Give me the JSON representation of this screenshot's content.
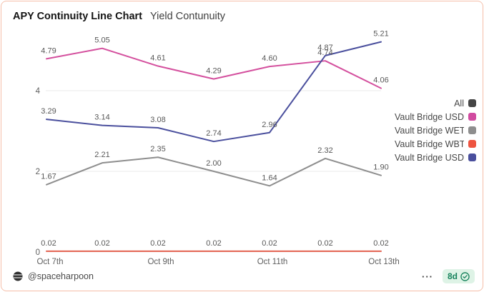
{
  "header": {
    "title": "APY Continuity Line Chart",
    "subtitle": "Yield Contunuity"
  },
  "legend": {
    "items": [
      {
        "label": "All",
        "color": "#454545"
      },
      {
        "label": "Vault Bridge USDC",
        "color": "#d14ba0"
      },
      {
        "label": "Vault Bridge WETH",
        "color": "#8e8e8e"
      },
      {
        "label": "Vault Bridge WBTC",
        "color": "#ee5440"
      },
      {
        "label": "Vault Bridge USDT",
        "color": "#4a4f9d"
      }
    ]
  },
  "chart_data": {
    "type": "line",
    "title": "APY Continuity Line Chart",
    "subtitle": "Yield Contunuity",
    "x_tick_labels": [
      "Oct 7th",
      "Oct 9th",
      "Oct 11th",
      "Oct 13th"
    ],
    "x_tick_indices": [
      0,
      2,
      4,
      6
    ],
    "num_points": 7,
    "y_ticks": [
      0,
      2,
      4
    ],
    "grid_y": [
      2,
      4
    ],
    "ylim": [
      0,
      5.6
    ],
    "grid_on": true,
    "legend_position": "right",
    "series": [
      {
        "name": "Vault Bridge USDC",
        "color": "#d4509e",
        "values": [
          4.79,
          5.05,
          4.61,
          4.29,
          4.6,
          4.74,
          4.06
        ]
      },
      {
        "name": "Vault Bridge WETH",
        "color": "#8e8e8e",
        "values": [
          1.67,
          2.21,
          2.35,
          2.0,
          1.64,
          2.32,
          1.9
        ]
      },
      {
        "name": "Vault Bridge WBTC",
        "color": "#e2604f",
        "values": [
          0.02,
          0.02,
          0.02,
          0.02,
          0.02,
          0.02,
          0.02
        ]
      },
      {
        "name": "Vault Bridge USDT",
        "color": "#4a4f9d",
        "values": [
          3.29,
          3.14,
          3.08,
          2.74,
          2.96,
          4.87,
          5.21
        ]
      }
    ]
  },
  "footer": {
    "handle": "@spaceharpoon",
    "avatar_icon": "globe-icon",
    "overflow_menu": "···",
    "badge_text": "8d",
    "badge_icon": "check-circle",
    "badge_color": "#17835c"
  }
}
